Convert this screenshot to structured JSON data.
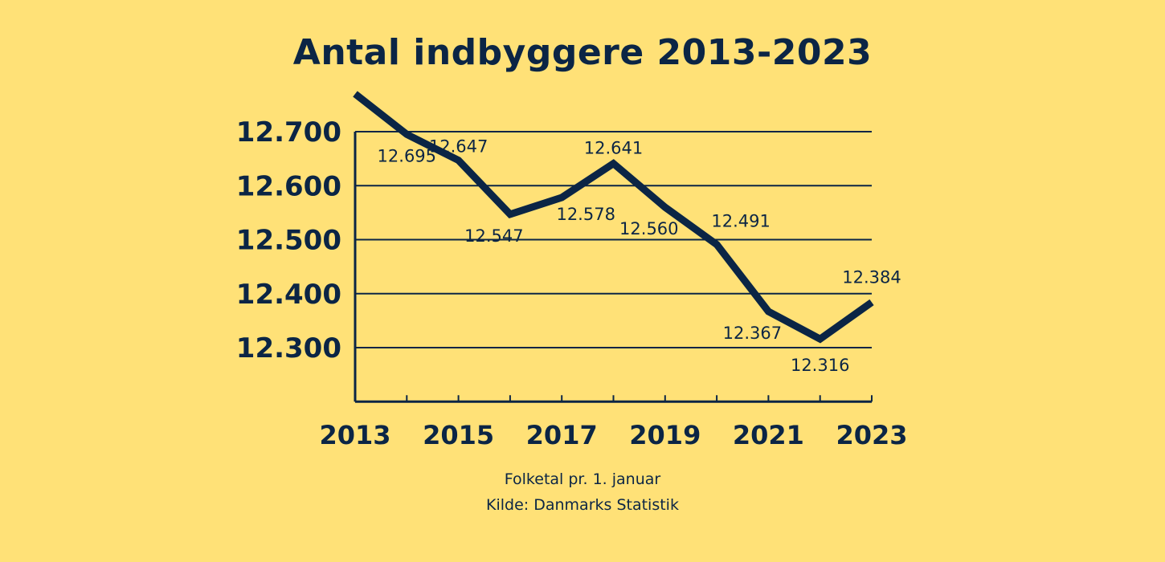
{
  "chart_data": {
    "type": "line",
    "title": "Antal indbyggere 2013-2023",
    "x": [
      2013,
      2014,
      2015,
      2016,
      2017,
      2018,
      2019,
      2020,
      2021,
      2022,
      2023
    ],
    "values": [
      12770,
      12695,
      12647,
      12547,
      12578,
      12641,
      12560,
      12491,
      12367,
      12316,
      12384
    ],
    "data_labels": [
      "",
      "12.695",
      "12.647",
      "12.547",
      "12.578",
      "12.641",
      "12.560",
      "12.491",
      "12.367",
      "12.316",
      "12.384"
    ],
    "x_tick_labels": [
      "2013",
      "2015",
      "2017",
      "2019",
      "2021",
      "2023"
    ],
    "y_ticks": [
      12300,
      12400,
      12500,
      12600,
      12700
    ],
    "y_tick_labels": [
      "12.300",
      "12.400",
      "12.500",
      "12.600",
      "12.700"
    ],
    "ylim": [
      12200,
      12700
    ],
    "xlim": [
      2013,
      2023
    ],
    "grid": true,
    "xlabel": "",
    "ylabel": "",
    "colors": {
      "background": "#FFE177",
      "line": "#0B2545"
    }
  },
  "footer": {
    "note": "Folketal pr. 1. januar",
    "source": "Kilde: Danmarks Statistik"
  }
}
